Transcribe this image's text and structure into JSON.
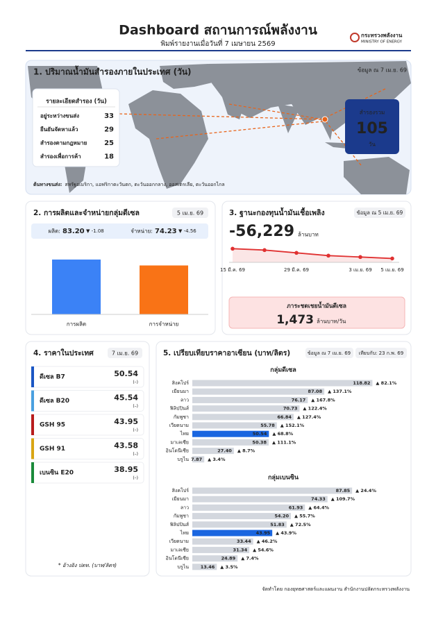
{
  "header": {
    "title": "Dashboard สถานการณ์พลังงาน",
    "subtitle": "พิมพ์รายงานเมื่อวันที่ 7 เมษายน 2569",
    "logo_th": "กระทรวงพลังงาน",
    "logo_en": "MINISTRY OF ENERGY"
  },
  "reserve": {
    "title": "1. ปริมาณน้ำมันสำรองภายในประเทศ (วัน)",
    "note": "ข้อมูล ณ 7 เม.ย. 69",
    "table_title": "รายละเอียดสำรอง (วัน)",
    "rows": [
      {
        "label": "อยู่ระหว่างขนส่ง",
        "value": 33,
        "color": "#e0641a"
      },
      {
        "label": "ยืนยันจัดหาแล้ว",
        "value": 29,
        "color": "#1a8a3a"
      },
      {
        "label": "สำรองตามกฎหมาย",
        "value": 25,
        "color": "#1b3a8c"
      },
      {
        "label": "สำรองเพื่อการค้า",
        "value": 18,
        "color": "#1b3a8c"
      }
    ],
    "total": {
      "label": "สำรองรวม",
      "value": 105,
      "unit": "วัน"
    },
    "sources_label": "ต้นทางขนส่ง:",
    "sources": "สหรัฐอเมริกา, แอฟริกาตะวันตก, ตะวันออกกลาง, ออสเตรเลีย, ตะวันออกไกล"
  },
  "diesel": {
    "title": "2. การผลิตและจำหน่ายกลุ่มดีเซล",
    "date": "5 เม.ย. 69",
    "type": "bar",
    "ylim": [
      0,
      100
    ],
    "production": {
      "label": "ผลิต:",
      "value": 83.2,
      "value_label": "83.20",
      "change": "▼ -1.08",
      "category": "การผลิต",
      "color": "#3b82f6"
    },
    "sales": {
      "label": "จำหน่าย:",
      "value": 74.23,
      "value_label": "74.23",
      "change": "▼ -4.56",
      "category": "การจำหน่าย",
      "color": "#f97316"
    }
  },
  "fund": {
    "title": "3. ฐานะกองทุนน้ำมันเชื้อเพลิง",
    "note": "ข้อมูล ณ 5 เม.ย. 69",
    "balance": "-56,229",
    "balance_unit": "ล้านบาท",
    "chart": {
      "type": "line",
      "categories": [
        "15 มี.ค. 69",
        null,
        "29 มี.ค. 69",
        null,
        "3 เม.ย. 69",
        "5 เม.ย. 69"
      ],
      "values": [
        -52000,
        -52600,
        -53800,
        -55000,
        -55600,
        -56229
      ],
      "ylim": [
        -60000,
        -45000
      ],
      "color": "#e03131"
    },
    "subsidy": {
      "label": "ภาระชดเชยน้ำมันดีเซล",
      "value": "1,473",
      "unit": "ล้านบาท/วัน"
    }
  },
  "prices": {
    "title": "4. ราคาในประเทศ",
    "date": "7 เม.ย. 69",
    "items": [
      {
        "name": "ดีเซล B7",
        "price": 50.54,
        "change": "(–)",
        "color": "#1a56c4"
      },
      {
        "name": "ดีเซล B20",
        "price": 45.54,
        "change": "(–)",
        "color": "#4aa0e0"
      },
      {
        "name": "GSH 95",
        "price": 43.95,
        "change": "(–)",
        "color": "#b81c1c"
      },
      {
        "name": "GSH 91",
        "price": 43.58,
        "change": "(–)",
        "color": "#d9a514"
      },
      {
        "name": "เบนซิน E20",
        "price": 38.95,
        "change": "(–)",
        "color": "#1a8a3a"
      }
    ],
    "footnote": "* อ้างอิง ปตท. (บาท/ลิตร)"
  },
  "asean": {
    "title": "5. เปรียบเทียบราคาอาเซียน (บาท/ลิตร)",
    "note": "ข้อมูล ณ 7 เม.ย. 69",
    "compare": "เทียบกับ: 23 ก.พ. 69",
    "color": "#d3d7de",
    "highlight_color": "#1a66e0",
    "groups": [
      {
        "title": "กลุ่มดีเซล",
        "xlim": [
          0,
          120
        ],
        "rows": [
          {
            "country": "สิงคโปร์",
            "value": 118.82,
            "value_label": "118.82",
            "change": "▲ 82.1%"
          },
          {
            "country": "เมียนมา",
            "value": 87.08,
            "value_label": "87.08",
            "change": "▲ 137.1%"
          },
          {
            "country": "ลาว",
            "value": 76.17,
            "value_label": "76.17",
            "change": "▲ 167.8%"
          },
          {
            "country": "ฟิลิปปินส์",
            "value": 70.73,
            "value_label": "70.73",
            "change": "▲ 122.4%"
          },
          {
            "country": "กัมพูชา",
            "value": 66.84,
            "value_label": "66.84",
            "change": "▲ 127.4%"
          },
          {
            "country": "เวียดนาม",
            "value": 55.78,
            "value_label": "55.78",
            "change": "▲ 152.1%"
          },
          {
            "country": "ไทย",
            "value": 50.54,
            "value_label": "50.54",
            "change": "▲ 68.8%",
            "highlight": true
          },
          {
            "country": "มาเลเซีย",
            "value": 50.38,
            "value_label": "50.38",
            "change": "▲ 111.1%"
          },
          {
            "country": "อินโดนีเซีย",
            "value": 27.4,
            "value_label": "27.40",
            "change": "▲ 8.7%"
          },
          {
            "country": "บรูไน",
            "value": 7.87,
            "value_label": "7.87",
            "change": "▲ 3.4%"
          }
        ]
      },
      {
        "title": "กลุ่มเบนซิน",
        "xlim": [
          0,
          100
        ],
        "rows": [
          {
            "country": "สิงคโปร์",
            "value": 87.85,
            "value_label": "87.85",
            "change": "▲ 24.4%"
          },
          {
            "country": "เมียนมา",
            "value": 74.33,
            "value_label": "74.33",
            "change": "▲ 109.7%"
          },
          {
            "country": "ลาว",
            "value": 61.93,
            "value_label": "61.93",
            "change": "▲ 64.4%"
          },
          {
            "country": "กัมพูชา",
            "value": 54.2,
            "value_label": "54.20",
            "change": "▲ 55.7%"
          },
          {
            "country": "ฟิลิปปินส์",
            "value": 51.83,
            "value_label": "51.83",
            "change": "▲ 72.5%"
          },
          {
            "country": "ไทย",
            "value": 43.95,
            "value_label": "43.95",
            "change": "▲ 43.9%",
            "highlight": true
          },
          {
            "country": "เวียดนาม",
            "value": 33.44,
            "value_label": "33.44",
            "change": "▲ 46.2%"
          },
          {
            "country": "มาเลเซีย",
            "value": 31.34,
            "value_label": "31.34",
            "change": "▲ 54.6%"
          },
          {
            "country": "อินโดนีเซีย",
            "value": 24.89,
            "value_label": "24.89",
            "change": "▲ 7.4%"
          },
          {
            "country": "บรูไน",
            "value": 13.46,
            "value_label": "13.46",
            "change": "▲ 3.5%"
          }
        ]
      }
    ]
  },
  "footer": "จัดทำโดย กองยุทธศาสตร์และแผนงาน สำนักงานปลัดกระทรวงพลังงาน"
}
